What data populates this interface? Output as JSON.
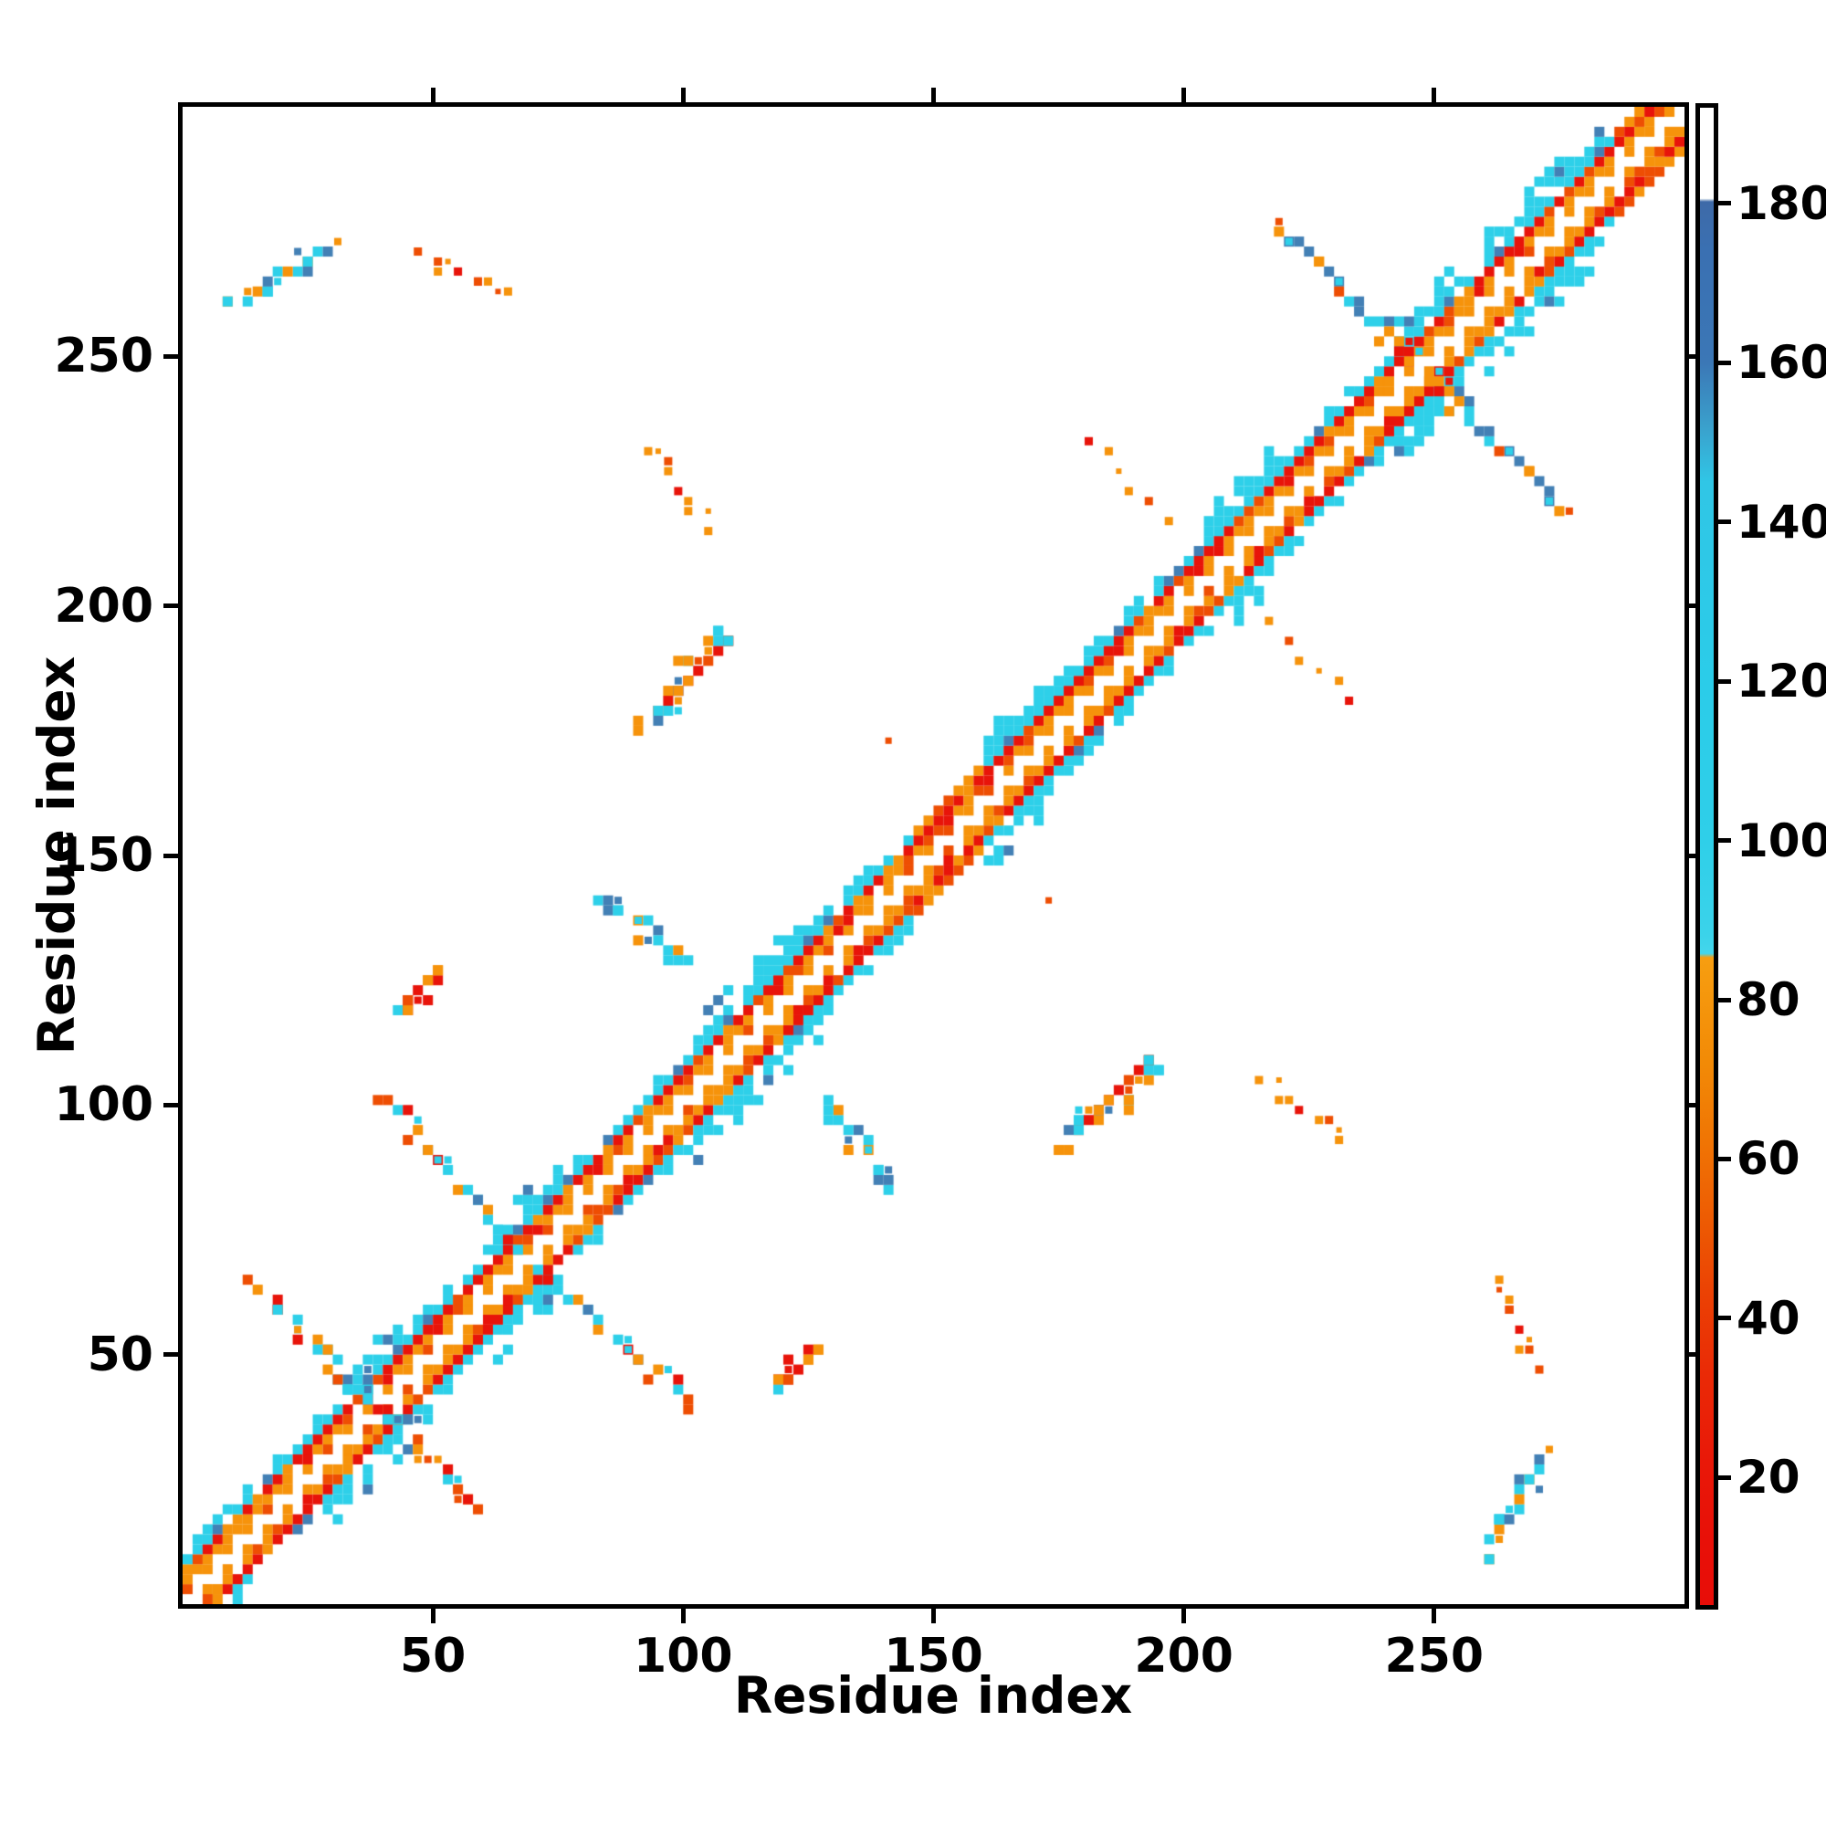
{
  "chart_data": {
    "type": "heatmap",
    "title": "",
    "xlabel": "Residue index",
    "ylabel": "Residue index",
    "xlim": [
      0,
      300
    ],
    "ylim": [
      0,
      300
    ],
    "xticks": [
      50,
      100,
      150,
      200,
      250
    ],
    "yticks": [
      50,
      100,
      150,
      200,
      250
    ],
    "grid": false,
    "cell_residues": 2,
    "seed": 7,
    "palette": {
      "red": "#e8140a",
      "redorange": "#ee4e03",
      "orange": "#f6930b",
      "cyan": "#2ed0e9",
      "steel": "#4380b5",
      "white": "#ffffff"
    },
    "palettes": {
      "mix": [
        [
          "cyan",
          0.36
        ],
        [
          "steel",
          0.13
        ],
        [
          "orange",
          0.29
        ],
        [
          "redorange",
          0.13
        ],
        [
          "red",
          0.09
        ]
      ],
      "warm": [
        [
          "orange",
          0.55
        ],
        [
          "redorange",
          0.3
        ],
        [
          "red",
          0.15
        ]
      ],
      "warmmix": [
        [
          "orange",
          0.4
        ],
        [
          "red",
          0.25
        ],
        [
          "redorange",
          0.15
        ],
        [
          "cyan",
          0.2
        ]
      ],
      "cool": [
        [
          "cyan",
          0.62
        ],
        [
          "steel",
          0.22
        ],
        [
          "orange",
          0.16
        ]
      ],
      "coolmix": [
        [
          "cyan",
          0.52
        ],
        [
          "steel",
          0.18
        ],
        [
          "orange",
          0.3
        ]
      ]
    },
    "band": {
      "description": "main diagonal contact band ~±10 residues: white diagonal, orange inner checker, red lines at ±6, cyan fringe at ±8..10",
      "warm_zones": [
        [
          146,
          159
        ],
        [
          286,
          299
        ]
      ],
      "bulges": [
        36,
        68,
        107,
        122,
        166,
        210,
        248,
        266,
        276
      ]
    },
    "clusters": [
      {
        "name": "antidiagonal-arm-37",
        "p1": [
          13,
          63
        ],
        "p2": [
          58,
          18
        ],
        "n": 44,
        "jitter": 1.6,
        "palette": "mix",
        "size": 11,
        "mirror": false
      },
      {
        "name": "cross-streak-37",
        "p1": [
          36,
          40
        ],
        "p2": [
          36,
          47
        ],
        "n": 6,
        "jitter": 0.6,
        "palette": "cool",
        "size": 11,
        "mirror": true
      },
      {
        "name": "arm-40-100",
        "p1": [
          40,
          101
        ],
        "p2": [
          65,
          71
        ],
        "n": 26,
        "jitter": 1.5,
        "palette": "mix",
        "size": 11,
        "mirror": true
      },
      {
        "name": "patch-46-122",
        "p1": [
          43,
          117
        ],
        "p2": [
          50,
          127
        ],
        "n": 13,
        "jitter": 1.7,
        "palette": "warmmix",
        "size": 11,
        "mirror": true
      },
      {
        "name": "patch-90-135",
        "p1": [
          83,
          141
        ],
        "p2": [
          99,
          128
        ],
        "n": 20,
        "jitter": 1.5,
        "palette": "cool",
        "size": 11,
        "mirror": true
      },
      {
        "name": "red-streak-100-185",
        "type": "redline",
        "p1": [
          93,
          178
        ],
        "p2": [
          106,
          191
        ],
        "mirror": true
      },
      {
        "name": "halo-100-185",
        "p1": [
          92,
          175
        ],
        "p2": [
          108,
          195
        ],
        "n": 26,
        "jitter": 2.3,
        "palette": "mix",
        "size": 11,
        "mirror": true
      },
      {
        "name": "trail-98-222",
        "p1": [
          93,
          231
        ],
        "p2": [
          104,
          214
        ],
        "n": 9,
        "jitter": 1.0,
        "palette": "warm",
        "size": 9,
        "mirror": true
      },
      {
        "name": "patch-18-264",
        "p1": [
          9,
          259
        ],
        "p2": [
          28,
          271
        ],
        "n": 24,
        "jitter": 1.4,
        "palette": "coolmix",
        "size": 11,
        "mirror": true
      },
      {
        "name": "trail-55-265",
        "p1": [
          47,
          269
        ],
        "p2": [
          63,
          261
        ],
        "n": 10,
        "jitter": 1.2,
        "palette": "warm",
        "size": 9,
        "mirror": true
      },
      {
        "name": "trail-188-224",
        "p1": [
          180,
          232
        ],
        "p2": [
          195,
          217
        ],
        "n": 6,
        "jitter": 0.9,
        "palette": "warm",
        "size": 9,
        "mirror": true
      },
      {
        "name": "arm-230-262",
        "p1": [
          218,
          275
        ],
        "p2": [
          246,
          248
        ],
        "n": 26,
        "jitter": 1.6,
        "palette": "mix",
        "size": 11,
        "mirror": true
      },
      {
        "name": "dot-140-172",
        "p1": [
          140,
          172
        ],
        "p2": [
          140,
          172
        ],
        "n": 1,
        "jitter": 0,
        "palette": "warm",
        "size": 10,
        "mirror": true
      }
    ],
    "colorbar": {
      "vmin": 4,
      "vmax": 192,
      "ticks": [
        20,
        40,
        60,
        80,
        100,
        120,
        140,
        160,
        180
      ],
      "stops": [
        {
          "v": 192,
          "c": "#ffffff"
        },
        {
          "v": 180.6,
          "c": "#ffffff"
        },
        {
          "v": 180.2,
          "c": "#3e6aa8"
        },
        {
          "v": 174,
          "c": "#3a70b2"
        },
        {
          "v": 160,
          "c": "#3b77b6"
        },
        {
          "v": 152,
          "c": "#3aa0cc"
        },
        {
          "v": 145,
          "c": "#30c6e6"
        },
        {
          "v": 120,
          "c": "#2bcce9"
        },
        {
          "v": 100,
          "c": "#2fcfe9"
        },
        {
          "v": 88,
          "c": "#3bd3ea"
        },
        {
          "v": 85.8,
          "c": "#44d6ec"
        },
        {
          "v": 85.3,
          "c": "#f79e10"
        },
        {
          "v": 72,
          "c": "#f28a06"
        },
        {
          "v": 62,
          "c": "#f07404"
        },
        {
          "v": 52,
          "c": "#ed5a03"
        },
        {
          "v": 43,
          "c": "#eb4104"
        },
        {
          "v": 33,
          "c": "#ea2a06"
        },
        {
          "v": 22,
          "c": "#e91808"
        },
        {
          "v": 12,
          "c": "#e81008"
        },
        {
          "v": 4,
          "c": "#e80d08"
        }
      ]
    }
  }
}
